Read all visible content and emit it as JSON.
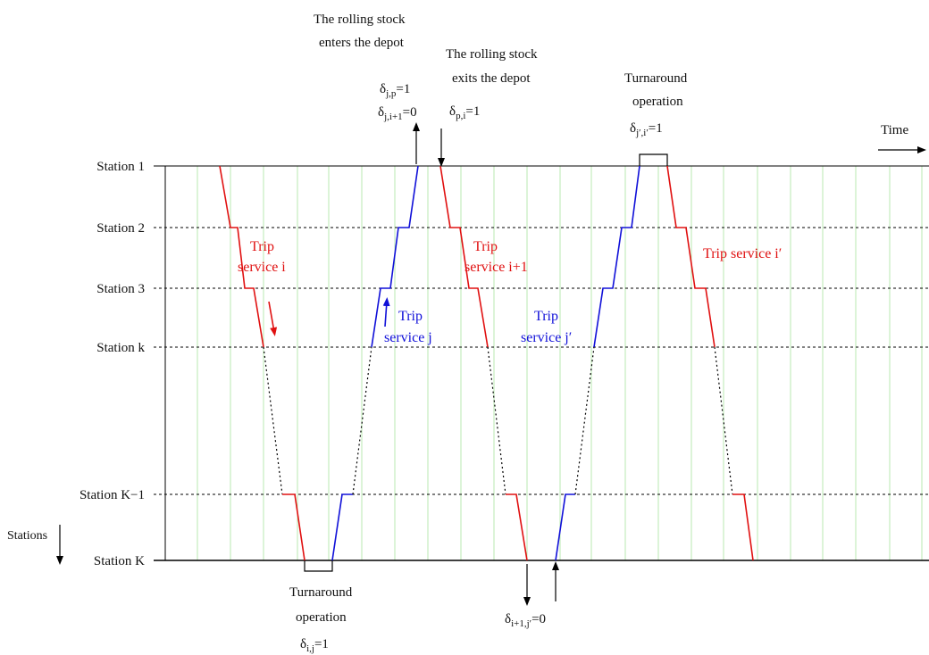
{
  "stations": [
    "Station 1",
    "Station 2",
    "Station 3",
    "Station k",
    "Station K−1",
    "Station K"
  ],
  "axes": {
    "time_label": "Time",
    "stations_label": "Stations"
  },
  "trips": {
    "i": {
      "line1": "Trip",
      "line2": "service i"
    },
    "i1": {
      "line1": "Trip",
      "line2": "service i+1"
    },
    "ip": {
      "line1": "Trip service i′"
    },
    "j": {
      "line1": "Trip",
      "line2": "service j"
    },
    "jp": {
      "line1": "Trip",
      "line2": "service j′"
    }
  },
  "annotations": {
    "enters": {
      "line1": "The rolling stock",
      "line2": "enters the depot",
      "eq1_base": "δ",
      "eq1_sub": "j,p",
      "eq1_rest": "=1",
      "eq2_base": "δ",
      "eq2_sub": "j,i+1",
      "eq2_rest": "=0"
    },
    "exits": {
      "line1": "The rolling stock",
      "line2": "exits the depot",
      "eq_base": "δ",
      "eq_sub": "p,i",
      "eq_rest": "=1"
    },
    "turn_top": {
      "line1": "Turnaround",
      "line2": "operation",
      "eq_base": "δ",
      "eq_sub": "j′,i′",
      "eq_rest": "=1"
    },
    "turn_bottom": {
      "line1": "Turnaround",
      "line2": "operation",
      "eq_base": "δ",
      "eq_sub": "i,j",
      "eq_rest": "=1"
    },
    "bottom_eq": {
      "eq_base": "δ",
      "eq_sub": "i+1,j′",
      "eq_rest": "=0"
    }
  },
  "colors": {
    "down_trip": "#e01010",
    "up_trip": "#1010d8",
    "grid": "#b8e8b0",
    "line": "#000000"
  }
}
